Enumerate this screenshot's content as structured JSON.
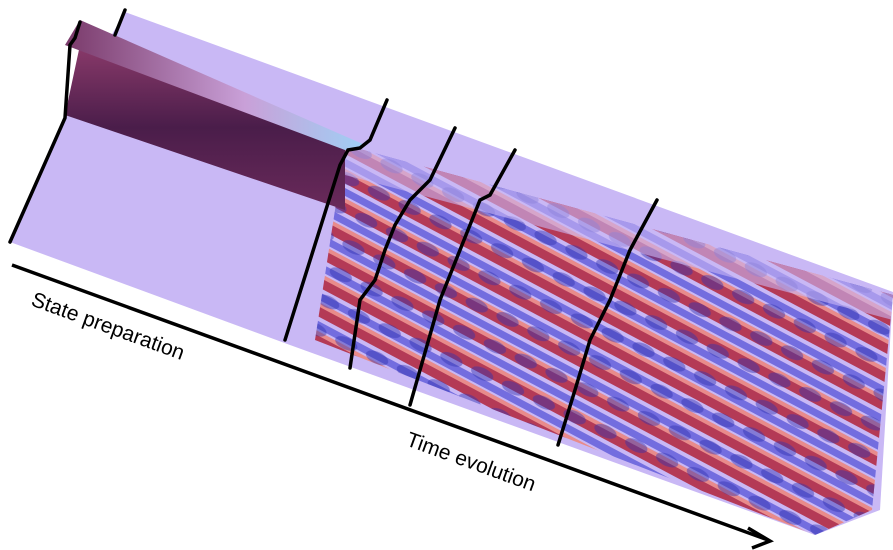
{
  "labels": {
    "state_preparation": "State preparation",
    "time_evolution": "Time evolution"
  }
}
